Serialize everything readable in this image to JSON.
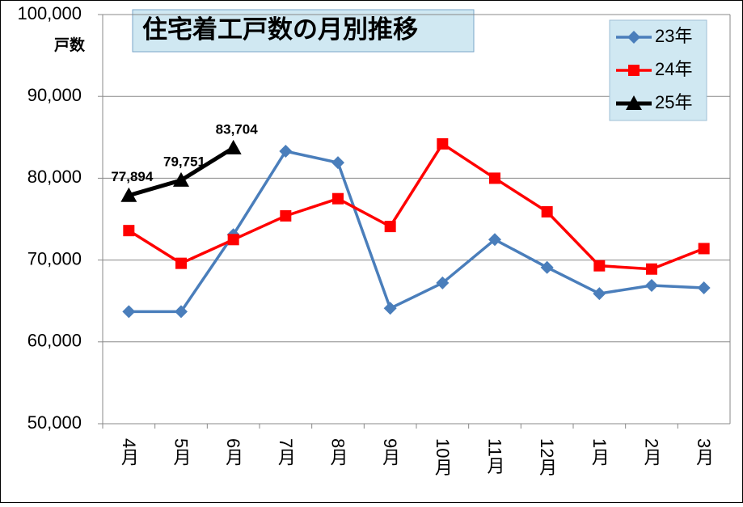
{
  "chart_data": {
    "type": "line",
    "title": "住宅着工戸数の月別推移",
    "y_axis_label": "戸数",
    "categories": [
      "4月",
      "5月",
      "6月",
      "7月",
      "8月",
      "9月",
      "10月",
      "11月",
      "12月",
      "1月",
      "2月",
      "3月"
    ],
    "series": [
      {
        "name": "23年",
        "color": "#4a7ebb",
        "marker": "diamond",
        "values": [
          63700,
          63700,
          73100,
          83300,
          81900,
          64100,
          67200,
          72500,
          69100,
          65900,
          66900,
          66600
        ]
      },
      {
        "name": "24年",
        "color": "#ff0000",
        "marker": "square",
        "values": [
          73600,
          69600,
          72500,
          75400,
          77500,
          74100,
          84200,
          80000,
          75900,
          69300,
          68900,
          71400
        ]
      },
      {
        "name": "25年",
        "color": "#000000",
        "marker": "triangle",
        "values": [
          77894,
          79751,
          83704,
          null,
          null,
          null,
          null,
          null,
          null,
          null,
          null,
          null
        ],
        "value_labels": [
          "77,894",
          "79,751",
          "83,704",
          null,
          null,
          null,
          null,
          null,
          null,
          null,
          null,
          null
        ]
      }
    ],
    "ylim": [
      50000,
      100000
    ],
    "yticks": [
      {
        "value": 50000,
        "label": "50,000"
      },
      {
        "value": 60000,
        "label": "60,000"
      },
      {
        "value": 70000,
        "label": "70,000"
      },
      {
        "value": 80000,
        "label": "80,000"
      },
      {
        "value": 90000,
        "label": "90,000"
      },
      {
        "value": 100000,
        "label": "100,000"
      }
    ],
    "grid": true,
    "legend": "upper right"
  }
}
